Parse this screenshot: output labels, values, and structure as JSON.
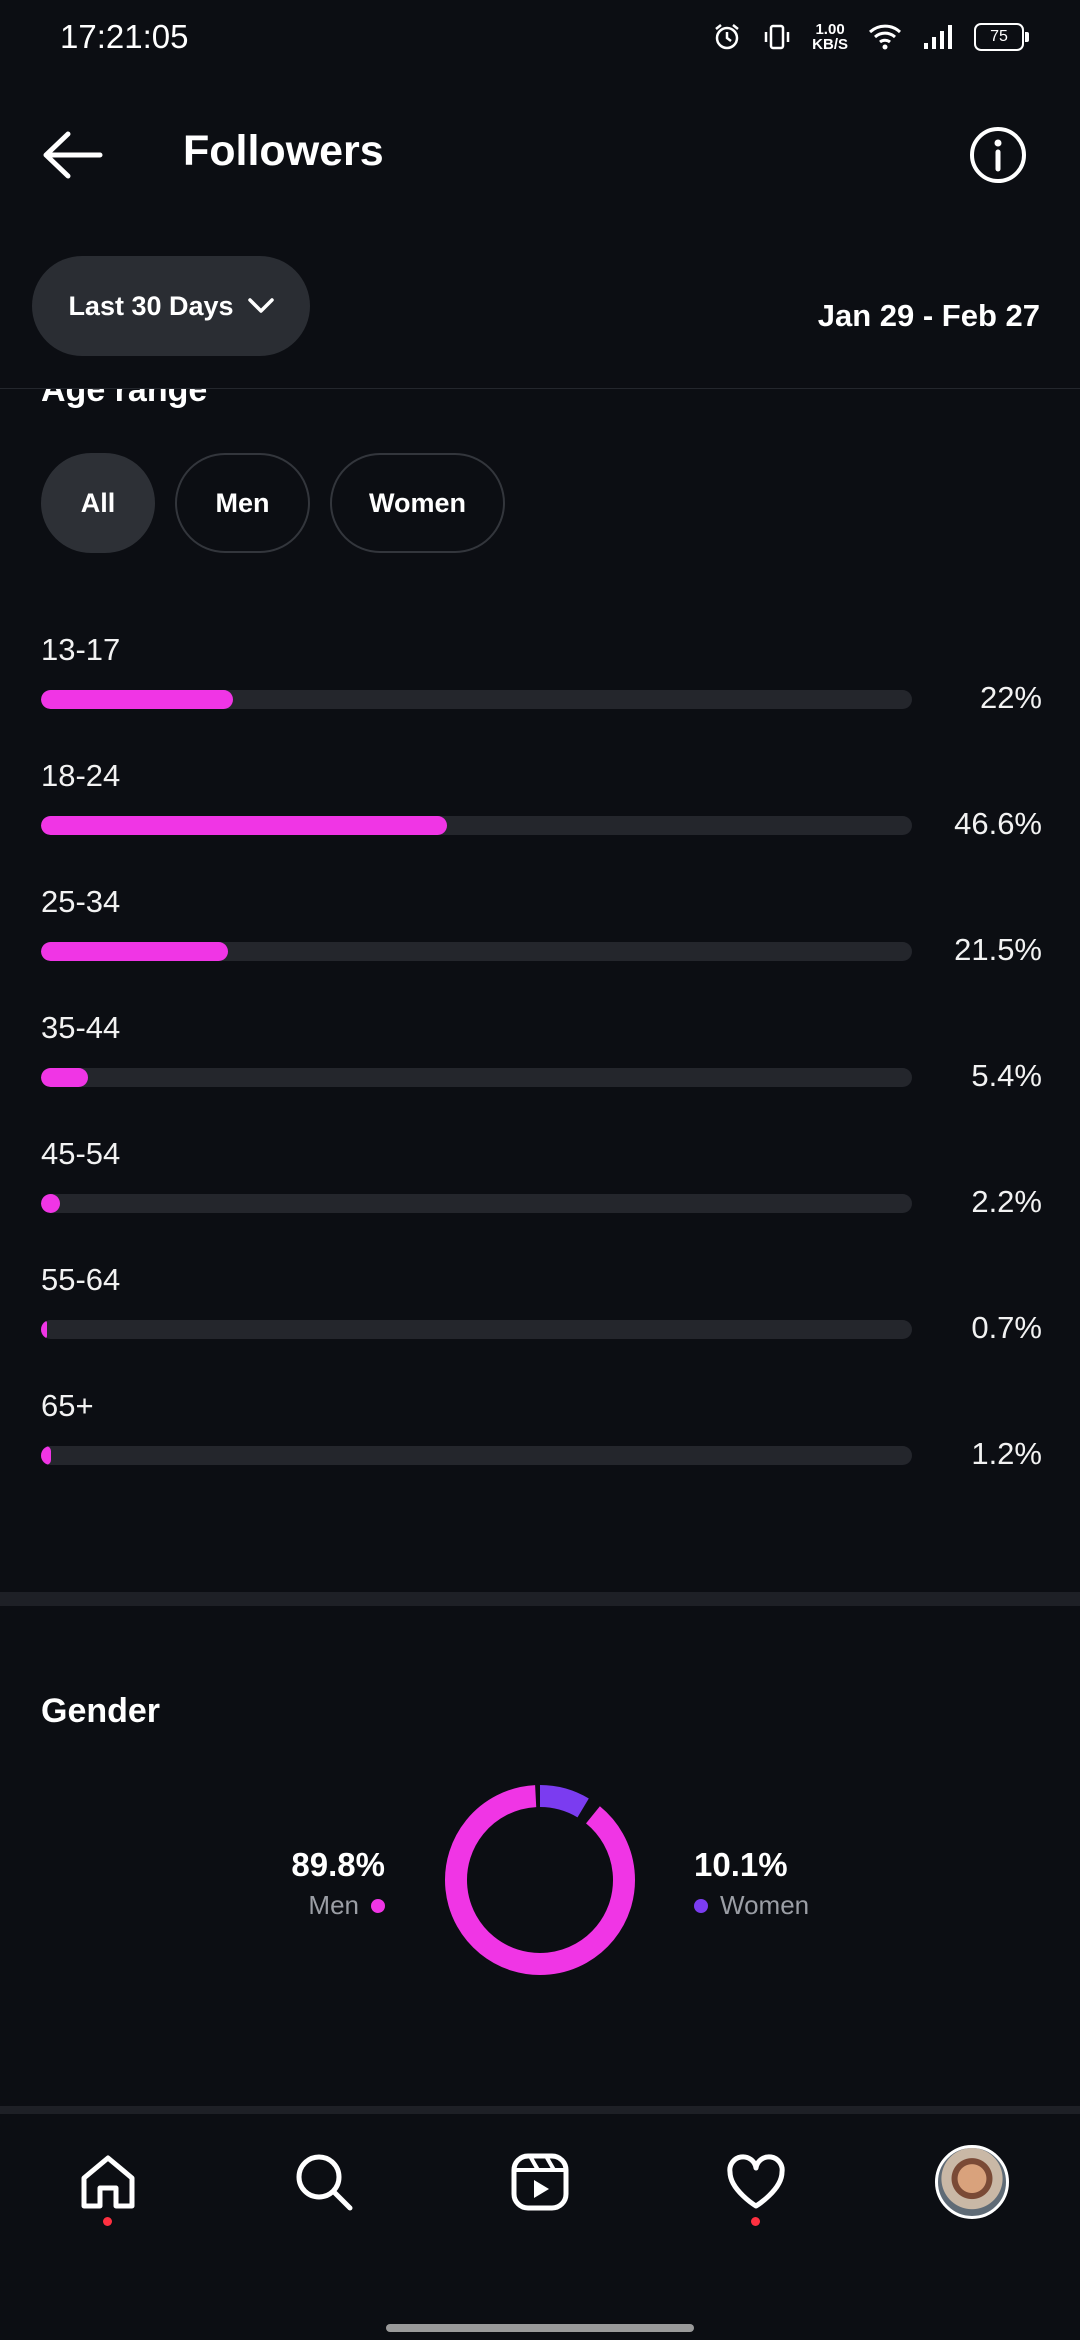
{
  "status_bar": {
    "time": "17:21:05",
    "net_speed_value": "1.00",
    "net_speed_unit": "KB/S",
    "battery": "75",
    "icons": [
      "alarm-icon",
      "vibrate-icon",
      "wifi-icon",
      "signal-icon",
      "battery-icon"
    ]
  },
  "header": {
    "title": "Followers",
    "back_icon": "arrow-left-icon",
    "info_icon": "info-icon"
  },
  "filter": {
    "range_label": "Last 30 Days",
    "date_range": "Jan 29 - Feb 27"
  },
  "age_section": {
    "title": "Age range",
    "tabs": [
      {
        "label": "All",
        "active": true
      },
      {
        "label": "Men",
        "active": false
      },
      {
        "label": "Women",
        "active": false
      }
    ],
    "rows": [
      {
        "label": "13-17",
        "percent_text": "22%",
        "value": 22
      },
      {
        "label": "18-24",
        "percent_text": "46.6%",
        "value": 46.6
      },
      {
        "label": "25-34",
        "percent_text": "21.5%",
        "value": 21.5
      },
      {
        "label": "35-44",
        "percent_text": "5.4%",
        "value": 5.4
      },
      {
        "label": "45-54",
        "percent_text": "2.2%",
        "value": 2.2
      },
      {
        "label": "55-64",
        "percent_text": "0.7%",
        "value": 0.7
      },
      {
        "label": "65+",
        "percent_text": "1.2%",
        "value": 1.2
      }
    ],
    "bar_color": "#f035e5"
  },
  "gender_section": {
    "title": "Gender",
    "men": {
      "value_text": "89.8%",
      "label": "Men",
      "value": 89.8,
      "color": "#f035e5"
    },
    "women": {
      "value_text": "10.1%",
      "label": "Women",
      "value": 10.1,
      "color": "#7b3cf0"
    }
  },
  "nav": {
    "items": [
      "home-icon",
      "search-icon",
      "reels-icon",
      "heart-icon",
      "profile-avatar"
    ]
  },
  "colors": {
    "background": "#0c0e13",
    "accent_pink": "#f035e5",
    "accent_purple": "#7b3cf0",
    "notification_red": "#ff3040"
  }
}
